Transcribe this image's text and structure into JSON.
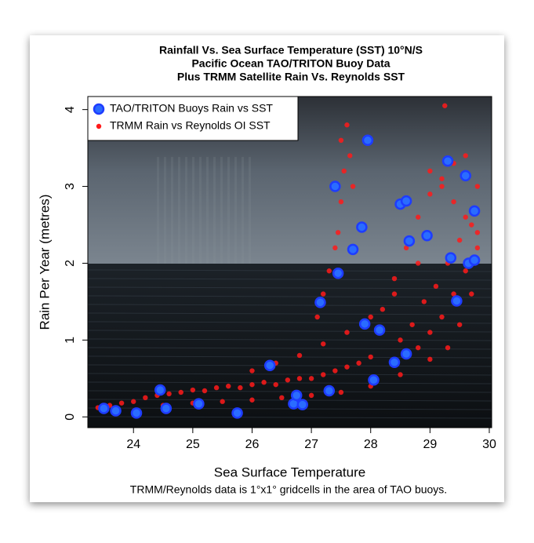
{
  "chart_data": {
    "type": "scatter",
    "title": [
      "Rainfall Vs. Sea Surface Temperature (SST) 10°N/S",
      "Pacific Ocean TAO/TRITON Buoy Data",
      "Plus TRMM Satellite Rain Vs. Reynolds SST"
    ],
    "x_label": "Sea Surface Temperature",
    "y_label": "Rain Per Year (metres)",
    "caption": "TRMM/Reynolds data is 1°x1° gridcells in the area of TAO buoys.",
    "xlim": [
      23.23,
      30.04
    ],
    "ylim": [
      -0.14,
      4.17
    ],
    "xticks": [
      24,
      25,
      26,
      27,
      28,
      29,
      30
    ],
    "yticks": [
      0,
      1,
      2,
      3,
      4
    ],
    "legend": "top-left",
    "series": [
      {
        "name": "TRMM Rain vs Reynolds OI SST",
        "color": "#ff1a1a",
        "x": [
          23.4,
          23.6,
          23.8,
          24.0,
          24.2,
          24.4,
          24.6,
          24.8,
          25.0,
          25.2,
          25.4,
          25.6,
          25.8,
          26.0,
          26.2,
          26.4,
          26.6,
          26.8,
          27.0,
          27.2,
          27.4,
          27.6,
          27.8,
          28.0,
          24.5,
          25.0,
          25.5,
          26.0,
          26.5,
          27.0,
          27.5,
          28.0,
          28.5,
          29.0,
          26.0,
          26.4,
          26.8,
          27.2,
          27.6,
          28.0,
          28.4,
          28.8,
          27.45,
          27.5,
          27.55,
          27.5,
          27.6,
          27.65,
          27.7,
          27.1,
          27.2,
          27.3,
          27.4,
          28.2,
          28.4,
          28.6,
          28.8,
          29.0,
          29.2,
          29.4,
          29.6,
          29.8,
          28.5,
          28.7,
          28.9,
          29.1,
          29.3,
          29.5,
          29.7,
          28.6,
          28.8,
          29.0,
          29.2,
          29.4,
          29.6,
          29.8,
          29.0,
          29.2,
          29.4,
          29.6,
          29.8,
          29.3,
          29.5,
          29.7,
          29.25
        ],
        "y": [
          0.12,
          0.15,
          0.18,
          0.2,
          0.25,
          0.28,
          0.3,
          0.32,
          0.35,
          0.34,
          0.38,
          0.4,
          0.38,
          0.42,
          0.45,
          0.42,
          0.48,
          0.5,
          0.5,
          0.55,
          0.6,
          0.65,
          0.7,
          0.78,
          0.15,
          0.18,
          0.2,
          0.22,
          0.25,
          0.28,
          0.32,
          0.4,
          0.55,
          0.75,
          0.6,
          0.7,
          0.8,
          0.95,
          1.1,
          1.3,
          1.6,
          2.0,
          2.4,
          2.8,
          3.2,
          3.6,
          3.8,
          3.4,
          3.0,
          1.3,
          1.6,
          1.9,
          2.2,
          1.4,
          1.8,
          2.2,
          2.6,
          2.9,
          3.1,
          3.3,
          3.4,
          3.0,
          1.0,
          1.2,
          1.5,
          1.7,
          2.0,
          2.3,
          2.5,
          0.8,
          0.9,
          1.1,
          1.3,
          1.6,
          1.9,
          2.2,
          3.2,
          3.0,
          2.8,
          2.6,
          2.4,
          0.9,
          1.2,
          1.6,
          4.05
        ]
      },
      {
        "name": "TAO/TRITON Buoys Rain vs SST",
        "color": "#2a6cff",
        "x": [
          23.5,
          23.7,
          24.05,
          24.45,
          24.55,
          25.1,
          25.75,
          26.3,
          26.7,
          26.75,
          26.85,
          27.15,
          27.3,
          27.4,
          27.45,
          27.7,
          27.85,
          27.9,
          27.95,
          28.05,
          28.15,
          28.4,
          28.5,
          28.6,
          28.6,
          28.65,
          28.95,
          29.3,
          29.35,
          29.45,
          29.6,
          29.65,
          29.75,
          29.75
        ],
        "y": [
          0.11,
          0.08,
          0.05,
          0.35,
          0.11,
          0.17,
          0.05,
          0.67,
          0.17,
          0.28,
          0.16,
          1.49,
          0.34,
          3.0,
          1.87,
          2.18,
          2.47,
          1.21,
          3.6,
          0.48,
          1.13,
          0.71,
          2.77,
          2.81,
          0.82,
          2.29,
          2.36,
          3.33,
          2.07,
          1.51,
          3.14,
          2.0,
          2.04,
          2.68
        ]
      }
    ]
  }
}
